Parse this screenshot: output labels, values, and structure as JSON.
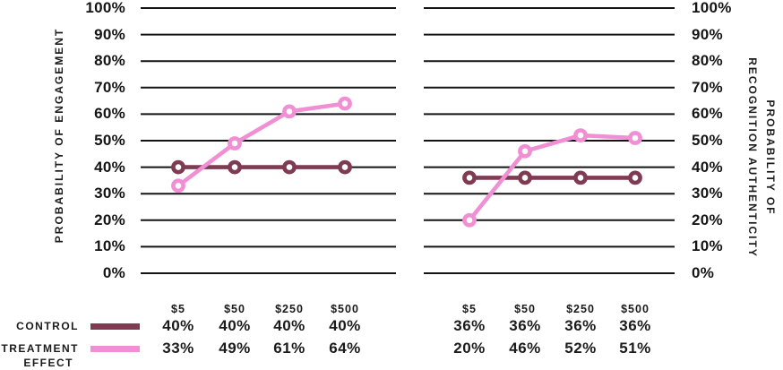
{
  "colors": {
    "control": "#7E3B52",
    "treatment": "#F08FD3",
    "grid": "#141414",
    "text": "#1B1B1B",
    "background": "#FFFFFF",
    "marker_fill": "#FFFFFF"
  },
  "y_axis": {
    "left_label": "PROBABILITY OF ENGAGEMENT",
    "right_label_line1": "PROBABILITY OF",
    "right_label_line2": "RECOGNITION AUTHENTICITY",
    "ticks": [
      "100%",
      "90%",
      "80%",
      "70%",
      "60%",
      "50%",
      "40%",
      "30%",
      "20%",
      "10%",
      "0%"
    ]
  },
  "legend": {
    "control_label": "CONTROL",
    "treatment_label_line1": "TREATMENT",
    "treatment_label_line2": "EFFECT"
  },
  "chart_data": [
    {
      "type": "line",
      "title": "",
      "ylabel": "PROBABILITY OF ENGAGEMENT",
      "xlabel": "",
      "categories": [
        "$5",
        "$50",
        "$250",
        "$500"
      ],
      "series": [
        {
          "name": "CONTROL",
          "values": [
            40,
            40,
            40,
            40
          ],
          "color_key": "control"
        },
        {
          "name": "TREATMENT EFFECT",
          "values": [
            33,
            49,
            61,
            64
          ],
          "color_key": "treatment"
        }
      ],
      "ylim": [
        0,
        100
      ],
      "ytick_step": 10,
      "grid": true,
      "value_suffix": "%",
      "legend_position": "bottom-left",
      "axis_label_side": "left"
    },
    {
      "type": "line",
      "title": "",
      "ylabel": "PROBABILITY OF RECOGNITION AUTHENTICITY",
      "xlabel": "",
      "categories": [
        "$5",
        "$50",
        "$250",
        "$500"
      ],
      "series": [
        {
          "name": "CONTROL",
          "values": [
            36,
            36,
            36,
            36
          ],
          "color_key": "control"
        },
        {
          "name": "TREATMENT EFFECT",
          "values": [
            20,
            46,
            52,
            51
          ],
          "color_key": "treatment"
        }
      ],
      "ylim": [
        0,
        100
      ],
      "ytick_step": 10,
      "grid": true,
      "value_suffix": "%",
      "legend_position": "bottom-left",
      "axis_label_side": "right"
    }
  ]
}
